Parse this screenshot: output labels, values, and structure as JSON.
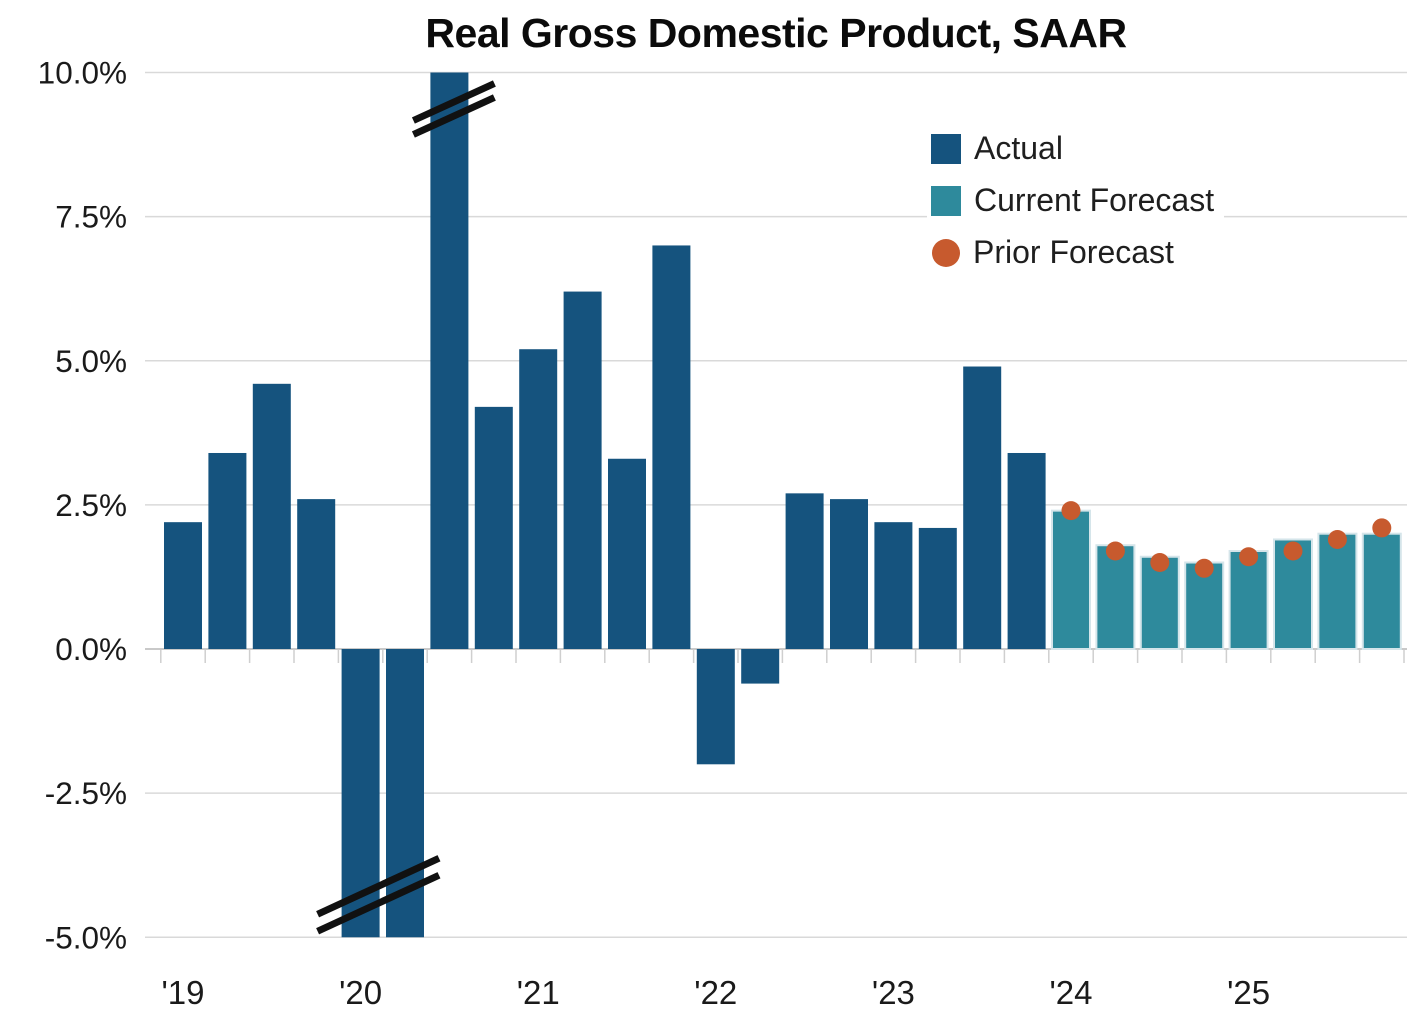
{
  "chart_data": {
    "type": "bar",
    "title": "Real Gross Domestic Product, SAAR",
    "y_axis": {
      "unit": "%",
      "range": [
        -5.0,
        10.0
      ],
      "ticks": [
        {
          "label": "10.0%",
          "value": 10.0
        },
        {
          "label": "7.5%",
          "value": 7.5
        },
        {
          "label": "5.0%",
          "value": 5.0
        },
        {
          "label": "2.5%",
          "value": 2.5
        },
        {
          "label": "0.0%",
          "value": 0.0
        },
        {
          "label": "-2.5%",
          "value": -2.5
        },
        {
          "label": "-5.0%",
          "value": -5.0
        }
      ]
    },
    "x_axis": {
      "year_labels": [
        "'19",
        "'20",
        "'21",
        "'22",
        "'23",
        "'24",
        "'25"
      ]
    },
    "legend": [
      {
        "label": "Actual",
        "color": "#15537e",
        "marker": "square"
      },
      {
        "label": "Current Forecast",
        "color": "#2e8a9c",
        "marker": "square"
      },
      {
        "label": "Prior Forecast",
        "color": "#c75a2e",
        "marker": "circle"
      }
    ],
    "quarters": [
      {
        "period": "2019 Q1",
        "series": "actual",
        "value": 2.2
      },
      {
        "period": "2019 Q2",
        "series": "actual",
        "value": 3.4
      },
      {
        "period": "2019 Q3",
        "series": "actual",
        "value": 4.6
      },
      {
        "period": "2019 Q4",
        "series": "actual",
        "value": 2.6
      },
      {
        "period": "2020 Q1",
        "series": "actual",
        "value": -5.0,
        "truncated": true
      },
      {
        "period": "2020 Q2",
        "series": "actual",
        "value": -5.0,
        "truncated": true
      },
      {
        "period": "2020 Q3",
        "series": "actual",
        "value": 10.0,
        "truncated": true
      },
      {
        "period": "2020 Q4",
        "series": "actual",
        "value": 4.2
      },
      {
        "period": "2021 Q1",
        "series": "actual",
        "value": 5.2
      },
      {
        "period": "2021 Q2",
        "series": "actual",
        "value": 6.2
      },
      {
        "period": "2021 Q3",
        "series": "actual",
        "value": 3.3
      },
      {
        "period": "2021 Q4",
        "series": "actual",
        "value": 7.0
      },
      {
        "period": "2022 Q1",
        "series": "actual",
        "value": -2.0
      },
      {
        "period": "2022 Q2",
        "series": "actual",
        "value": -0.6
      },
      {
        "period": "2022 Q3",
        "series": "actual",
        "value": 2.7
      },
      {
        "period": "2022 Q4",
        "series": "actual",
        "value": 2.6
      },
      {
        "period": "2023 Q1",
        "series": "actual",
        "value": 2.2
      },
      {
        "period": "2023 Q2",
        "series": "actual",
        "value": 2.1
      },
      {
        "period": "2023 Q3",
        "series": "actual",
        "value": 4.9
      },
      {
        "period": "2023 Q4",
        "series": "actual",
        "value": 3.4
      },
      {
        "period": "2024 Q1",
        "series": "current_forecast",
        "value": 2.4,
        "prior_forecast": 2.4
      },
      {
        "period": "2024 Q2",
        "series": "current_forecast",
        "value": 1.8,
        "prior_forecast": 1.7
      },
      {
        "period": "2024 Q3",
        "series": "current_forecast",
        "value": 1.6,
        "prior_forecast": 1.5
      },
      {
        "period": "2024 Q4",
        "series": "current_forecast",
        "value": 1.5,
        "prior_forecast": 1.4
      },
      {
        "period": "2025 Q1",
        "series": "current_forecast",
        "value": 1.7,
        "prior_forecast": 1.6
      },
      {
        "period": "2025 Q2",
        "series": "current_forecast",
        "value": 1.9,
        "prior_forecast": 1.7
      },
      {
        "period": "2025 Q3",
        "series": "current_forecast",
        "value": 2.0,
        "prior_forecast": 1.9
      },
      {
        "period": "2025 Q4",
        "series": "current_forecast",
        "value": 2.0,
        "prior_forecast": 2.1
      }
    ],
    "style": {
      "grid_color": "#d9d9d9",
      "zero_line_color": "#c9c9c9",
      "axis_tick_color": "#cfcfcf",
      "text_color": "#1a1a1a",
      "forecast_bar_stroke": "#d5e5ea",
      "break_mark_color": "#111111",
      "background": "#ffffff"
    }
  }
}
